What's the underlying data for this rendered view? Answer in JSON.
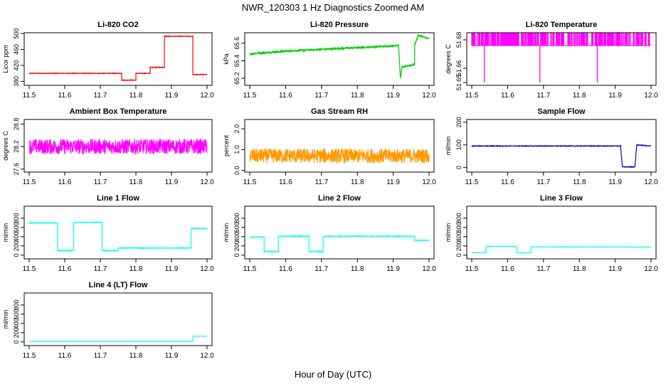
{
  "figure": {
    "title": "NWR_120303  1 Hz Diagnostics Zoomed AM",
    "xlabel": "Hour of Day (UTC)"
  },
  "chart_data": [
    {
      "type": "line",
      "title": "Li-820 CO2",
      "ylabel": "Licor ppm",
      "color": "#ff0000",
      "xlim": [
        11.5,
        12.0
      ],
      "xticks": [
        "11.5",
        "11.6",
        "11.7",
        "11.8",
        "11.9",
        "12.0"
      ],
      "ylim": [
        370,
        502
      ],
      "yticks": [
        "380",
        "420",
        "460",
        "500"
      ],
      "ytick_values": [
        380,
        420,
        460,
        500
      ],
      "series": [
        {
          "x": [
            11.5,
            11.76,
            11.76,
            11.8,
            11.8,
            11.84,
            11.84,
            11.88,
            11.88,
            11.96,
            11.96,
            12.0
          ],
          "y": [
            400,
            400,
            383,
            383,
            400,
            400,
            415,
            415,
            493,
            493,
            397,
            397
          ],
          "noise": 0.8
        }
      ]
    },
    {
      "type": "line",
      "title": "Li-820 Pressure",
      "ylabel": "kPa",
      "color": "#00cc00",
      "xlim": [
        11.5,
        12.0
      ],
      "xticks": [
        "11.5",
        "11.6",
        "11.7",
        "11.8",
        "11.9",
        "12.0"
      ],
      "ylim": [
        65.12,
        65.72
      ],
      "yticks": [
        "65.2",
        "65.4",
        "65.6"
      ],
      "ytick_values": [
        65.2,
        65.4,
        65.6
      ],
      "series": [
        {
          "x": [
            11.5,
            11.6,
            11.7,
            11.8,
            11.9,
            11.915,
            11.92,
            11.925,
            11.93,
            11.96,
            11.96,
            11.97,
            12.0
          ],
          "y": [
            65.48,
            65.51,
            65.53,
            65.55,
            65.57,
            65.58,
            65.2,
            65.33,
            65.33,
            65.36,
            65.58,
            65.69,
            65.65
          ],
          "noise": 0.01
        }
      ]
    },
    {
      "type": "line",
      "title": "Li-820 Temperature",
      "ylabel": "degrees C",
      "color": "#ff00ff",
      "xlim": [
        11.5,
        12.0
      ],
      "xticks": [
        "11.5",
        "11.6",
        "11.7",
        "11.8",
        "11.9",
        "12.0"
      ],
      "ylim": [
        51.648,
        51.685
      ],
      "yticks": [
        "51.65",
        "51.66",
        "51.68"
      ],
      "ytick_values": [
        51.65,
        51.66,
        51.68
      ],
      "series": [
        {
          "x": [
            11.5,
            12.0
          ],
          "y": [
            51.676,
            51.676
          ],
          "spikes_high": 51.685,
          "spikes_low": [
            11.535,
            11.69,
            11.85
          ],
          "spike_low_value": 51.65
        }
      ]
    },
    {
      "type": "line",
      "title": "Ambient Box Temperature",
      "ylabel": "degrees C",
      "color": "#ff00ff",
      "xlim": [
        11.5,
        12.0
      ],
      "xticks": [
        "11.5",
        "11.6",
        "11.7",
        "11.8",
        "11.9",
        "12.0"
      ],
      "ylim": [
        27.52,
        28.92
      ],
      "yticks": [
        "27.6",
        "28.2",
        "28.8"
      ],
      "ytick_values": [
        27.6,
        28.2,
        28.8
      ],
      "series": [
        {
          "x": [
            11.5,
            12.0
          ],
          "y": [
            28.2,
            28.2
          ],
          "noise": 0.2
        }
      ]
    },
    {
      "type": "line",
      "title": "Gas Stream RH",
      "ylabel": "percent",
      "color": "#ff9900",
      "xlim": [
        11.5,
        12.0
      ],
      "xticks": [
        "11.5",
        "11.6",
        "11.7",
        "11.8",
        "11.9",
        "12.0"
      ],
      "ylim": [
        -0.08,
        2.45
      ],
      "yticks": [
        "0.0",
        "1.0",
        "2.0"
      ],
      "ytick_values": [
        0,
        1,
        2
      ],
      "series": [
        {
          "x": [
            11.5,
            12.0
          ],
          "y": [
            0.7,
            0.7
          ],
          "noise": 0.35
        }
      ]
    },
    {
      "type": "line",
      "title": "Sample Flow",
      "ylabel": "ml/min",
      "color": "#0000cc",
      "xlim": [
        11.5,
        12.0
      ],
      "xticks": [
        "11.5",
        "11.6",
        "11.7",
        "11.8",
        "11.9",
        "12.0"
      ],
      "ylim": [
        -20,
        212
      ],
      "yticks": [
        "0",
        "100",
        "200"
      ],
      "ytick_values": [
        0,
        100,
        200
      ],
      "series": [
        {
          "x": [
            11.5,
            11.915,
            11.92,
            11.955,
            11.96,
            12.0
          ],
          "y": [
            95,
            95,
            3,
            3,
            100,
            95
          ],
          "noise": 1.5
        }
      ]
    },
    {
      "type": "line",
      "title": "Line 1 Flow",
      "ylabel": "ml/min",
      "color": "#00ffff",
      "xlim": [
        11.5,
        12.0
      ],
      "xticks": [
        "11.5",
        "11.6",
        "11.7",
        "11.8",
        "11.9",
        "12.0"
      ],
      "ylim": [
        -80,
        1060
      ],
      "yticks": [
        "0",
        "200",
        "400",
        "600",
        "800"
      ],
      "ytick_values": [
        0,
        200,
        400,
        600,
        800
      ],
      "series": [
        {
          "x": [
            11.5,
            11.58,
            11.58,
            11.625,
            11.625,
            11.705,
            11.705,
            11.75,
            11.75,
            11.955,
            11.955,
            12.0
          ],
          "y": [
            700,
            700,
            100,
            100,
            710,
            710,
            100,
            100,
            155,
            155,
            580,
            580
          ],
          "noise": 8
        }
      ]
    },
    {
      "type": "line",
      "title": "Line 2 Flow",
      "ylabel": "ml/min",
      "color": "#00ffff",
      "xlim": [
        11.5,
        12.0
      ],
      "xticks": [
        "11.5",
        "11.6",
        "11.7",
        "11.8",
        "11.9",
        "12.0"
      ],
      "ylim": [
        -80,
        1060
      ],
      "yticks": [
        "0",
        "200",
        "400",
        "600",
        "800"
      ],
      "ytick_values": [
        0,
        200,
        400,
        600,
        800
      ],
      "series": [
        {
          "x": [
            11.5,
            11.54,
            11.54,
            11.58,
            11.58,
            11.665,
            11.665,
            11.705,
            11.705,
            11.96,
            11.96,
            12.0
          ],
          "y": [
            390,
            390,
            75,
            75,
            410,
            410,
            75,
            75,
            410,
            410,
            320,
            320
          ],
          "noise": 8
        }
      ]
    },
    {
      "type": "line",
      "title": "Line 3 Flow",
      "ylabel": "ml/min",
      "color": "#00ffff",
      "xlim": [
        11.5,
        12.0
      ],
      "xticks": [
        "11.5",
        "11.6",
        "11.7",
        "11.8",
        "11.9",
        "12.0"
      ],
      "ylim": [
        -80,
        1060
      ],
      "yticks": [
        "0",
        "200",
        "400",
        "600",
        "800"
      ],
      "ytick_values": [
        0,
        200,
        400,
        600,
        800
      ],
      "series": [
        {
          "x": [
            11.5,
            11.54,
            11.54,
            11.625,
            11.625,
            11.665,
            11.665,
            12.0
          ],
          "y": [
            55,
            55,
            190,
            190,
            50,
            50,
            180,
            175
          ],
          "noise": 3
        }
      ]
    },
    {
      "type": "line",
      "title": "Line 4 (LT) Flow",
      "ylabel": "ml/min",
      "color": "#00ffff",
      "xlim": [
        11.5,
        12.0
      ],
      "xticks": [
        "11.5",
        "11.6",
        "11.7",
        "11.8",
        "11.9",
        "12.0"
      ],
      "ylim": [
        -80,
        1060
      ],
      "yticks": [
        "0",
        "200",
        "400",
        "600",
        "800"
      ],
      "ytick_values": [
        0,
        200,
        400,
        600,
        800
      ],
      "series": [
        {
          "x": [
            11.5,
            11.96,
            11.96,
            12.0
          ],
          "y": [
            10,
            10,
            125,
            125
          ],
          "noise": 2
        }
      ]
    }
  ]
}
